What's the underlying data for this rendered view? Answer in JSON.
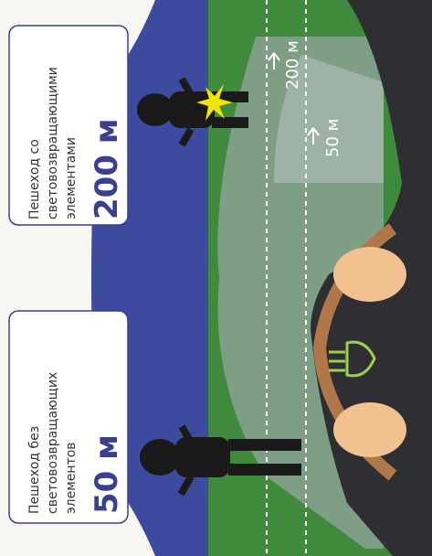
{
  "callouts": [
    {
      "title_lines": [
        "Пешеход со",
        "световозвращающими",
        "элементами"
      ],
      "distance": "200 м"
    },
    {
      "title_lines": [
        "Пешеход без",
        "световозвращающих",
        "элементов"
      ],
      "distance": "50 м"
    }
  ],
  "road_markers": [
    "200 м",
    "50 м"
  ]
}
